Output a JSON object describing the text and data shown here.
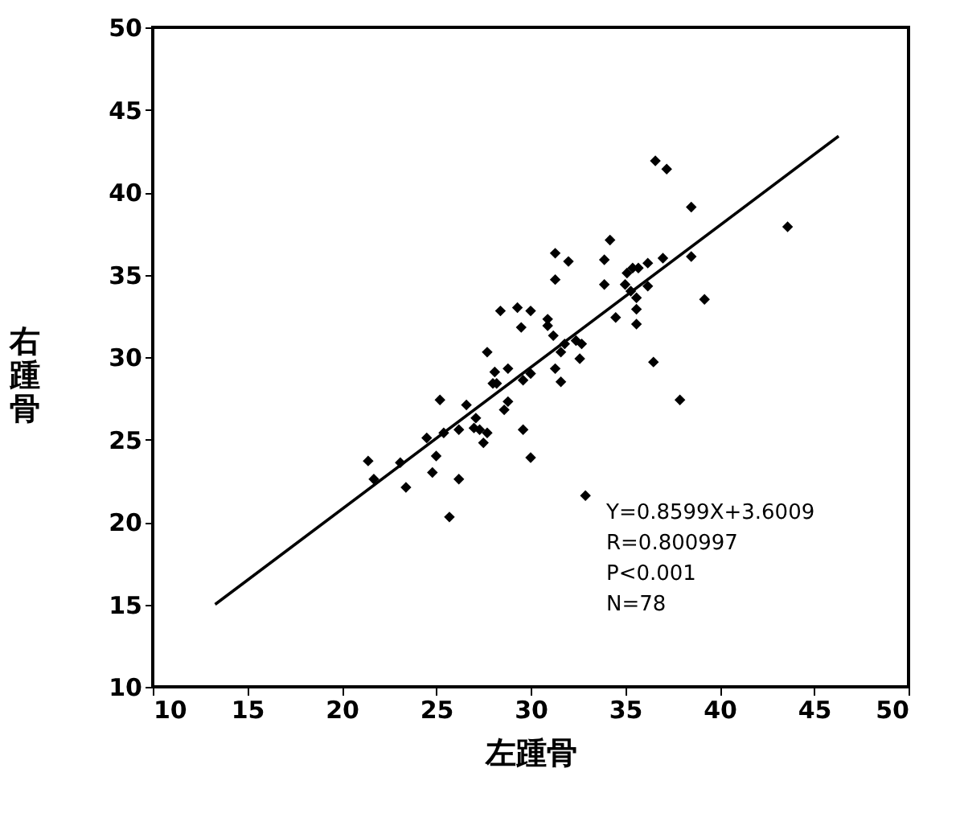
{
  "chart_data": {
    "type": "scatter",
    "xlabel": "左踵骨",
    "ylabel": "右踵骨",
    "xlim": [
      10,
      50
    ],
    "ylim": [
      10,
      50
    ],
    "xticks": [
      10,
      15,
      20,
      25,
      30,
      35,
      40,
      45,
      50
    ],
    "yticks": [
      10,
      15,
      20,
      25,
      30,
      35,
      40,
      45,
      50
    ],
    "grid": false,
    "series": [
      {
        "type": "scatter",
        "marker": "diamond",
        "color": "#000000",
        "x": [
          21.4,
          21.7,
          23.1,
          23.4,
          24.5,
          25.2,
          25.0,
          24.8,
          25.4,
          26.2,
          25.7,
          26.2,
          26.6,
          27.1,
          27.0,
          27.3,
          27.7,
          27.5,
          28.8,
          28.6,
          29.6,
          30.0,
          28.2,
          29.6,
          31.6,
          36.6,
          37.2,
          38.5,
          43.6,
          34.2,
          31.3,
          32.0,
          33.9,
          37.0,
          38.5,
          36.2,
          31.3,
          33.9,
          35.1,
          35.4,
          35.7,
          35.0,
          35.3,
          36.2,
          39.2,
          35.6,
          35.6,
          34.5,
          35.6,
          28.4,
          29.3,
          30.0,
          29.5,
          30.9,
          30.9,
          31.2,
          31.8,
          32.4,
          32.7,
          31.6,
          32.6,
          27.7,
          31.3,
          36.5,
          37.9,
          28.1,
          28.8,
          28.0,
          30.0,
          32.9
        ],
        "values": [
          23.7,
          22.6,
          23.6,
          22.1,
          25.1,
          27.4,
          24.0,
          23.0,
          25.4,
          22.6,
          20.3,
          25.6,
          27.1,
          26.3,
          25.7,
          25.6,
          25.4,
          24.8,
          27.3,
          26.8,
          25.6,
          23.9,
          28.4,
          28.6,
          28.5,
          41.9,
          41.4,
          39.1,
          37.9,
          37.1,
          36.3,
          35.8,
          35.9,
          36.0,
          36.1,
          35.7,
          34.7,
          34.4,
          35.1,
          35.4,
          35.4,
          34.4,
          34.0,
          34.3,
          33.5,
          33.6,
          32.9,
          32.4,
          32.0,
          32.8,
          33.0,
          32.8,
          31.8,
          32.3,
          31.9,
          31.3,
          30.8,
          31.0,
          30.8,
          30.3,
          29.9,
          30.3,
          29.3,
          29.7,
          27.4,
          29.1,
          29.3,
          28.4,
          29.0,
          21.6
        ]
      },
      {
        "type": "line",
        "marker": "none",
        "color": "#000000",
        "x": [
          13.3,
          46.3
        ],
        "values": [
          15.0,
          43.4
        ]
      }
    ],
    "annotations": [
      "Y=0.8599X+3.6009",
      "R=0.800997",
      "P<0.001",
      "N=78"
    ]
  }
}
